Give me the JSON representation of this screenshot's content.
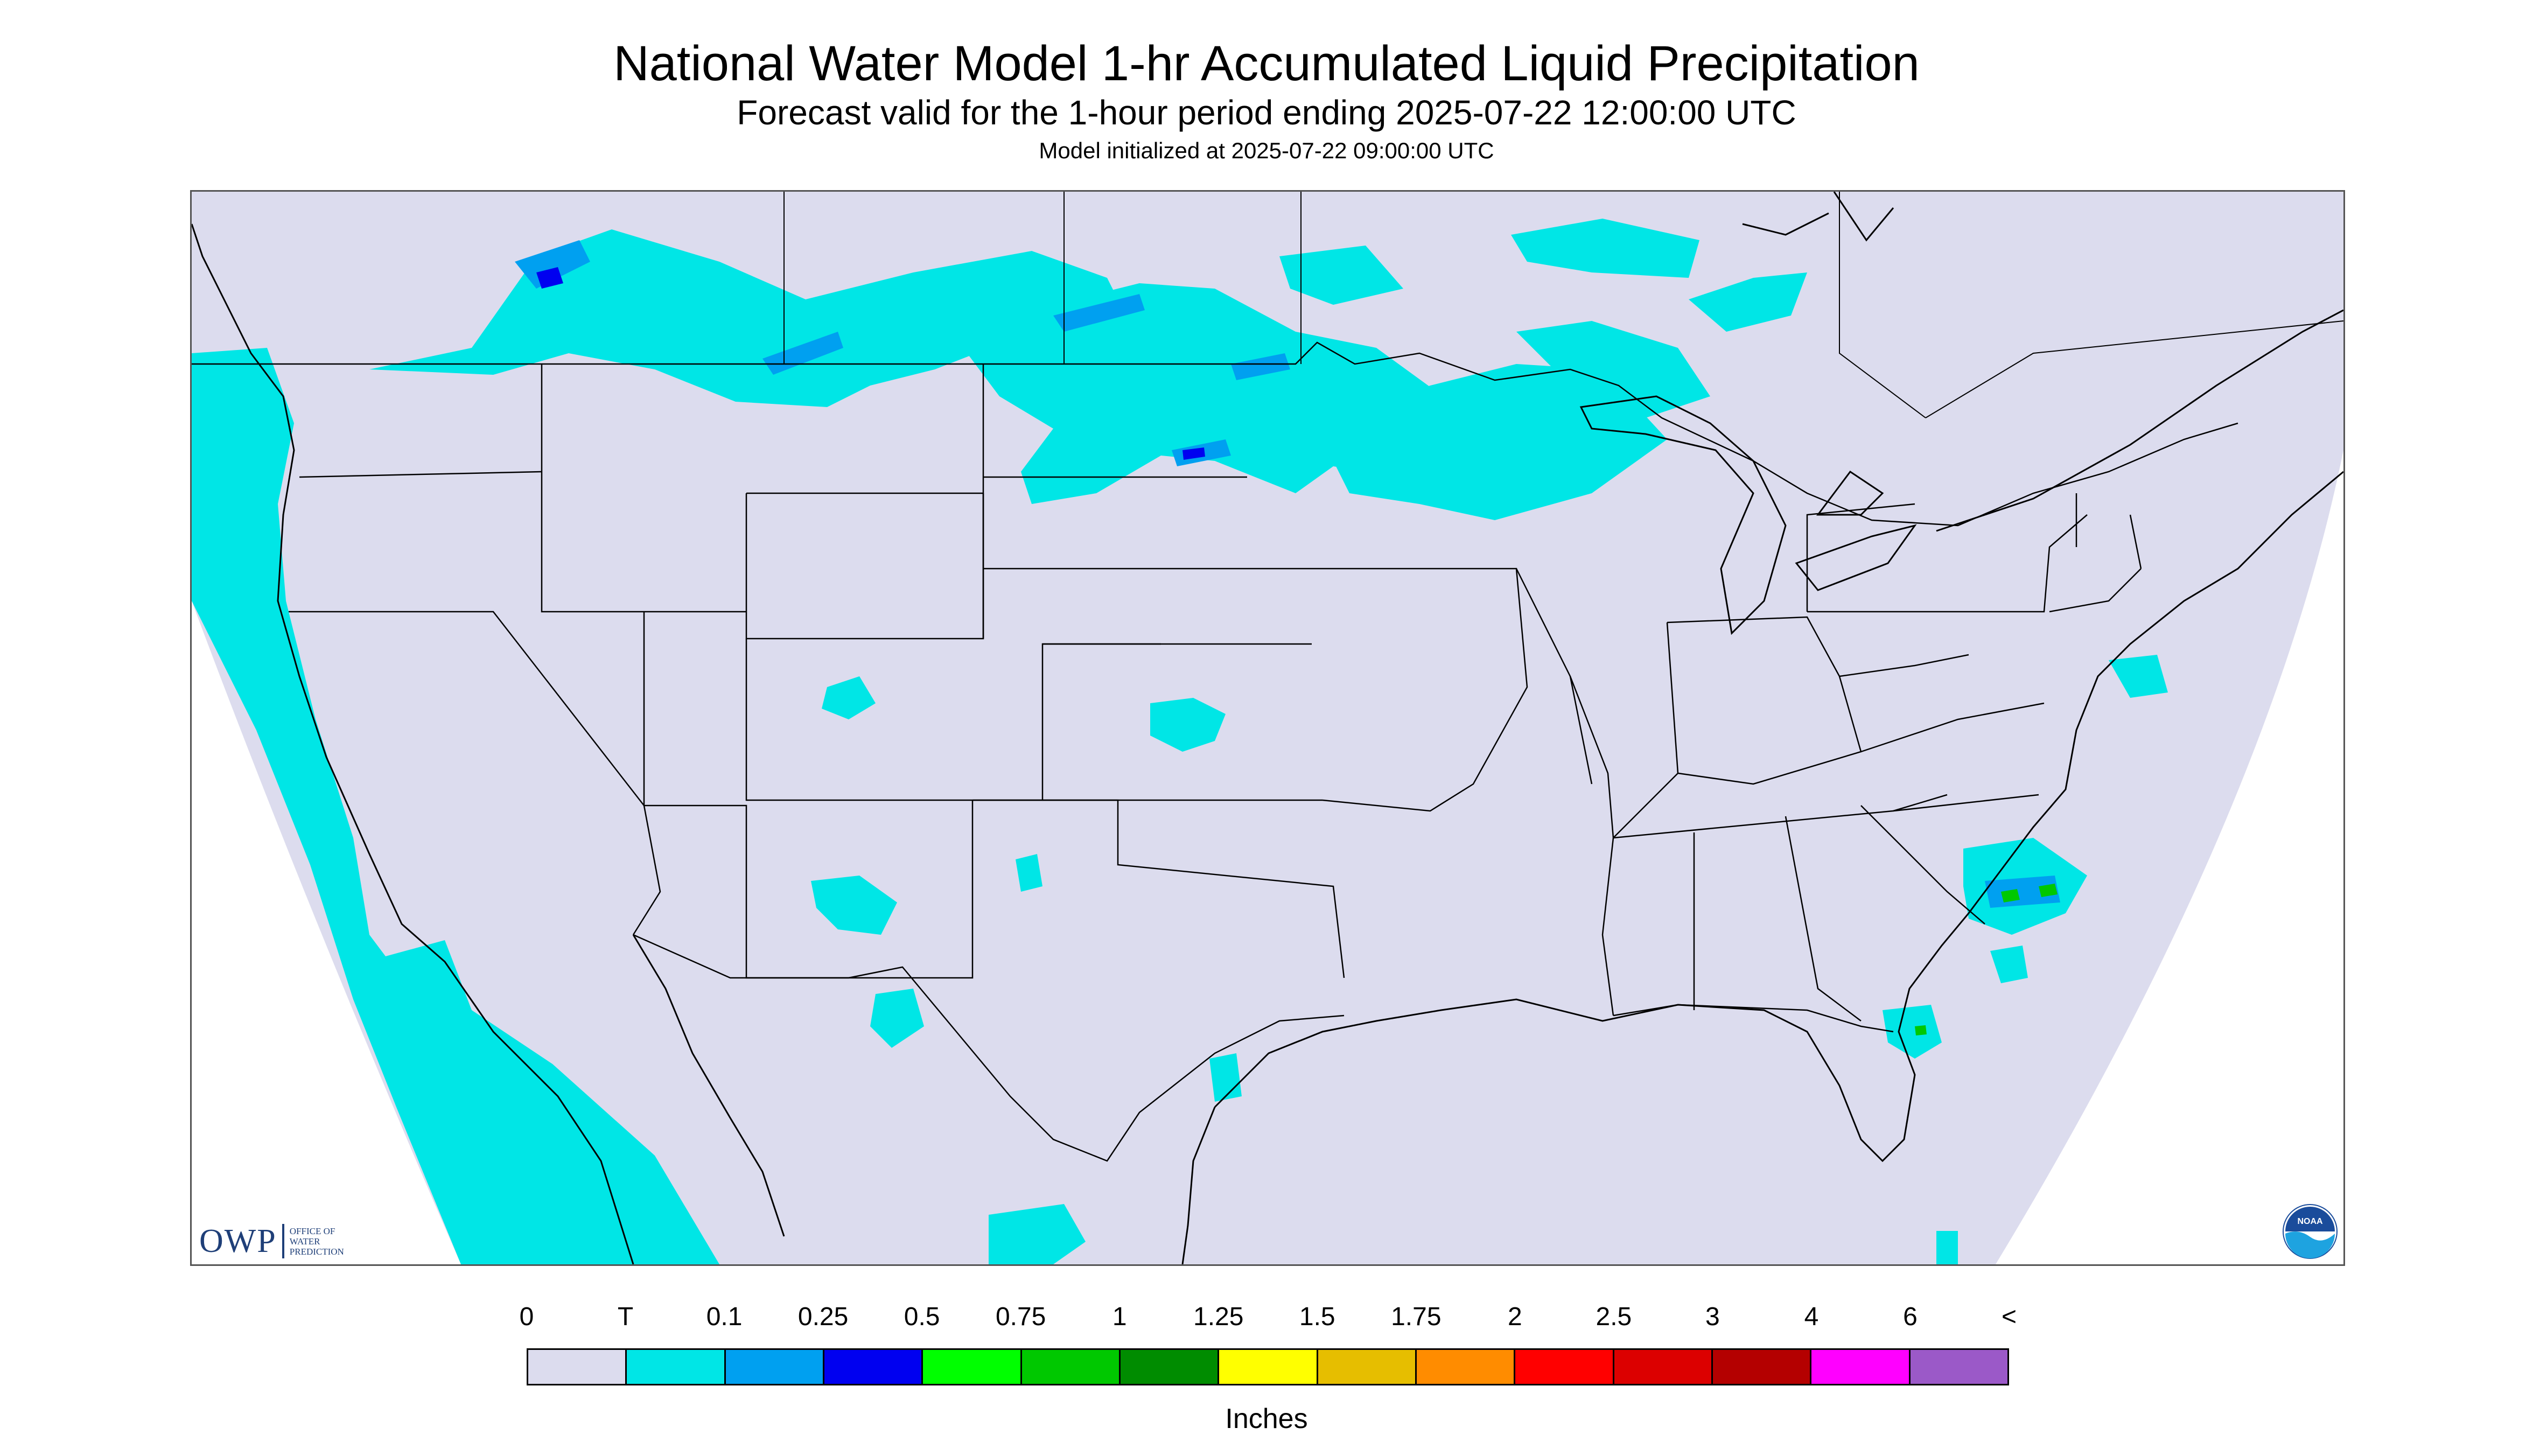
{
  "title": "National Water Model 1-hr Accumulated Liquid Precipitation",
  "subtitle": "Forecast valid for the 1-hour period ending 2025-07-22 12:00:00 UTC",
  "init_line": "Model initialized at 2025-07-22 09:00:00 UTC",
  "logos": {
    "owp_letters": "OWP",
    "owp_lines": [
      "Office of",
      "Water",
      "Prediction"
    ],
    "noaa_text": "NOAA"
  },
  "legend": {
    "units": "Inches",
    "labels": [
      "0",
      "T",
      "0.1",
      "0.25",
      "0.5",
      "0.75",
      "1",
      "1.25",
      "1.5",
      "1.75",
      "2",
      "2.5",
      "3",
      "4",
      "6",
      "<"
    ],
    "colors": [
      "#dcdcee",
      "#00e6e6",
      "#00a0f0",
      "#0000f0",
      "#00ff00",
      "#00c800",
      "#008c00",
      "#ffff00",
      "#e6be00",
      "#ff8c00",
      "#ff0000",
      "#dc0000",
      "#b40000",
      "#ff00ff",
      "#9b59c8"
    ]
  },
  "map": {
    "domain_fill": "#dcdcee",
    "outside_fill": "#ffffff",
    "boundary_color": "#000000"
  }
}
